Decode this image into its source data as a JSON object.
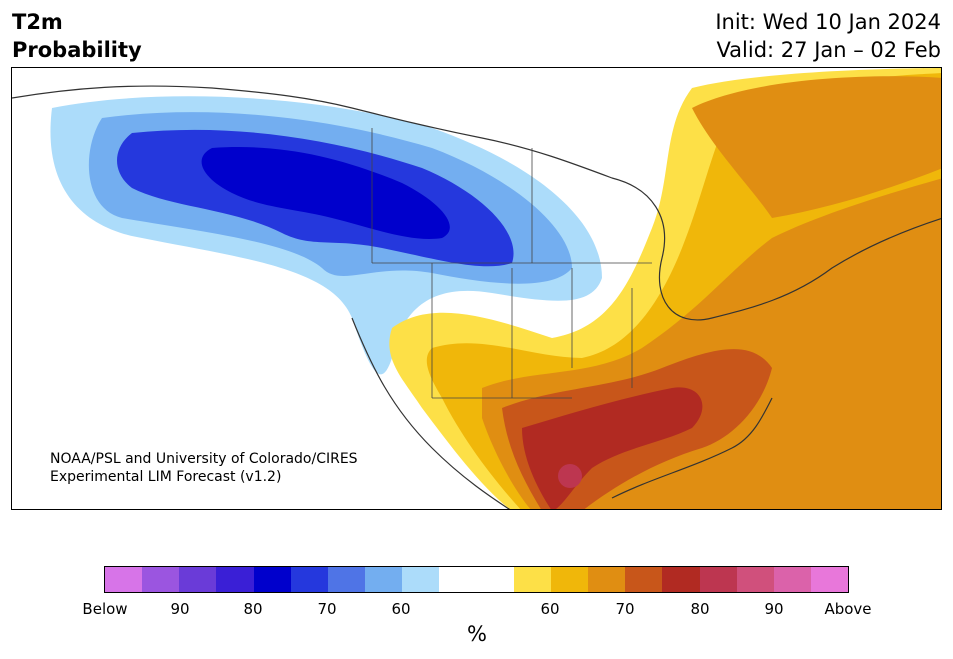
{
  "header": {
    "title_line1": "T2m",
    "title_line2": "Probability",
    "init": "Init: Wed 10 Jan 2024",
    "valid": "Valid: 27 Jan – 02 Feb"
  },
  "map": {
    "region": "North America",
    "credit_line1": "NOAA/PSL and University of Colorado/CIRES",
    "credit_line2": "Experimental LIM Forecast (v1.2)"
  },
  "legend": {
    "unit": "%",
    "colors": [
      "#d774e8",
      "#9b55e0",
      "#6a3bd8",
      "#3a1fd6",
      "#0000cc",
      "#2538dd",
      "#4f74e6",
      "#73aef0",
      "#acdcfa",
      "#ffffff",
      "#ffffff",
      "#fde047",
      "#f0b70a",
      "#e08e12",
      "#c8561a",
      "#b12a22",
      "#bd3650",
      "#d0507c",
      "#db62aa",
      "#e877da"
    ],
    "tick_labels": [
      "Below",
      "90",
      "80",
      "70",
      "60",
      "60",
      "70",
      "80",
      "90",
      "Above"
    ]
  }
}
